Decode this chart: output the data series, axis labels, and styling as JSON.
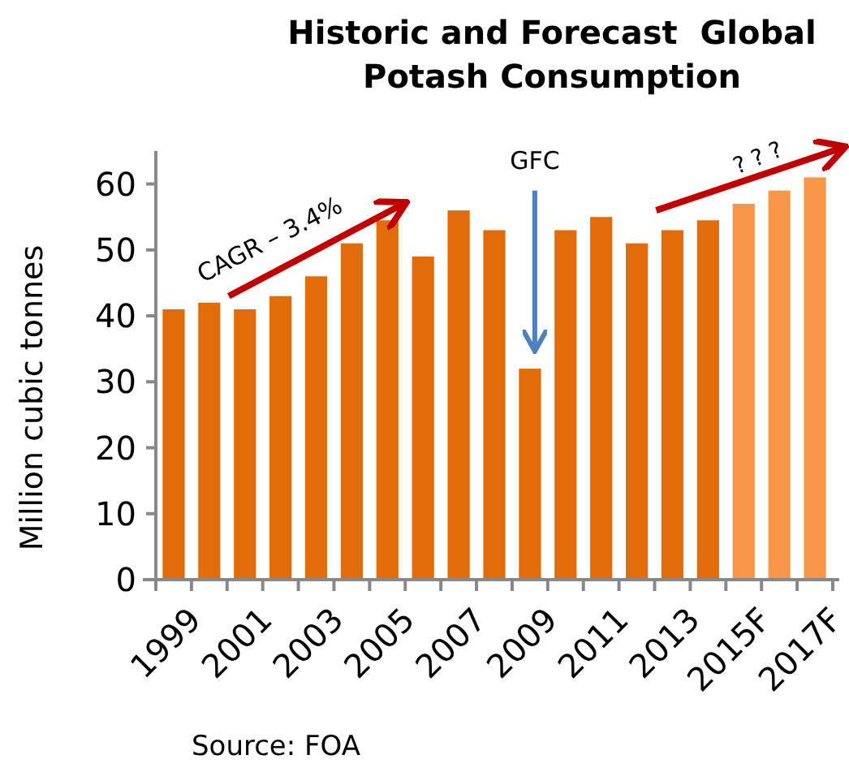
{
  "chart_data": {
    "type": "bar",
    "title": "Historic and Forecast  Global\nPotash Consumption",
    "ylabel": "Million cubic tonnes",
    "categories": [
      "1999",
      null,
      "2001",
      null,
      "2003",
      null,
      "2005",
      null,
      "2007",
      null,
      "2009",
      null,
      "2011",
      null,
      "2013",
      null,
      "2015F",
      null,
      "2017F"
    ],
    "values": [
      41,
      42,
      41,
      43,
      46,
      51,
      54.5,
      49,
      56,
      53,
      32,
      53,
      55,
      51,
      53,
      54.5,
      57,
      59,
      61
    ],
    "colors": [
      "#e36c0a",
      "#e36c0a",
      "#e36c0a",
      "#e36c0a",
      "#e36c0a",
      "#e36c0a",
      "#e36c0a",
      "#e36c0a",
      "#e36c0a",
      "#e36c0a",
      "#e36c0a",
      "#e36c0a",
      "#e36c0a",
      "#e36c0a",
      "#e36c0a",
      "#e36c0a",
      "#f79646",
      "#f79646",
      "#f79646"
    ],
    "ylim": [
      0,
      65
    ],
    "yticks": [
      0,
      10,
      20,
      30,
      40,
      50,
      60
    ],
    "grid": false,
    "annotations": [
      "CAGR – 3.4%",
      "GFC",
      "? ? ?",
      "Source: FOA"
    ]
  }
}
